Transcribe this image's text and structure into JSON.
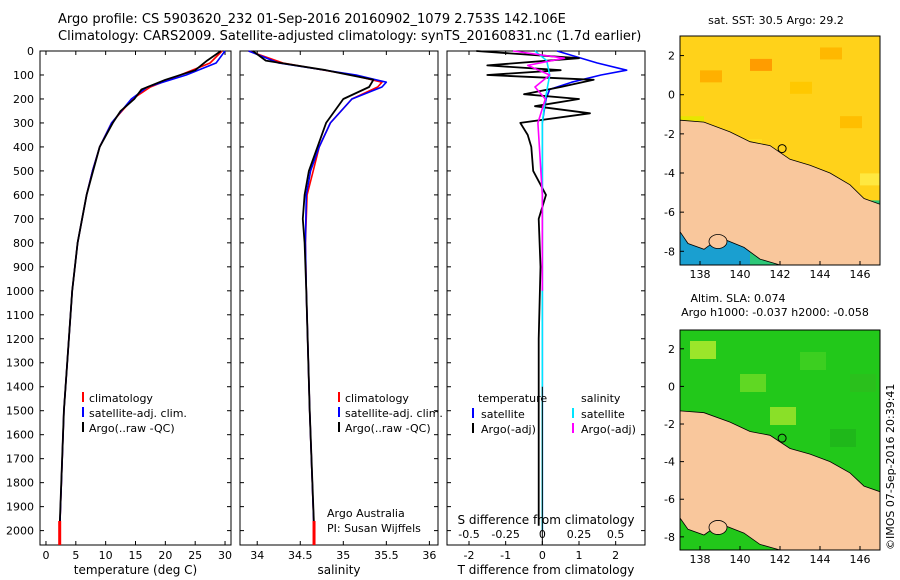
{
  "title": {
    "line1": "Argo profile: CS 5903620_232 01-Sep-2016 20160902_1079 2.753S 142.106E",
    "line2": "Climatology: CARS2009. Satellite-adjusted climatology: synTS_20160831.nc (1.7d earlier)"
  },
  "colors": {
    "climatology": "#ff0000",
    "satellite": "#0000ff",
    "argo": "#000000",
    "sal_satellite": "#00e5ff",
    "sal_argo": "#ff00ff",
    "land": "#f9c79c",
    "sst_warm": "#ffd21a",
    "sla_green": "#22c81a"
  },
  "chart_data": [
    {
      "type": "line",
      "title": "",
      "xlabel": "temperature (deg C)",
      "ylabel": "",
      "xlim": [
        -1,
        31
      ],
      "ylim": [
        2060,
        0
      ],
      "xticks": [
        "0",
        "5",
        "10",
        "15",
        "20",
        "25",
        "30"
      ],
      "yticks": [
        "0",
        "100",
        "200",
        "300",
        "400",
        "500",
        "600",
        "700",
        "800",
        "900",
        "1000",
        "1100",
        "1200",
        "1300",
        "1400",
        "1500",
        "1600",
        "1700",
        "1800",
        "1900",
        "2000"
      ],
      "legend": [
        "climatology",
        "satellite-adj. clim.",
        "Argo(..raw -QC)"
      ],
      "series": [
        {
          "name": "climatology",
          "depth": [
            0,
            50,
            100,
            150,
            200,
            300,
            400,
            500,
            600,
            800,
            1000,
            1500,
            2000
          ],
          "values": [
            29.5,
            27.5,
            22.5,
            17.5,
            14.5,
            11,
            9,
            7.8,
            6.8,
            5.3,
            4.4,
            3.0,
            2.3
          ]
        },
        {
          "name": "satellite-adj. clim.",
          "depth": [
            0,
            50,
            100,
            150,
            200,
            300,
            400,
            500,
            600,
            800,
            1000,
            1500,
            2000
          ],
          "values": [
            30.0,
            28.5,
            23.5,
            17,
            14.3,
            11,
            9,
            7.8,
            6.8,
            5.3,
            4.4,
            3.0,
            2.3
          ]
        },
        {
          "name": "Argo(..raw -QC)",
          "depth": [
            0,
            40,
            80,
            120,
            160,
            200,
            250,
            300,
            400,
            500,
            600,
            800,
            1000,
            1500,
            1980
          ],
          "values": [
            29.3,
            27,
            25,
            20,
            16,
            14.8,
            12.5,
            11.2,
            9,
            7.9,
            6.8,
            5.3,
            4.4,
            3.0,
            2.3
          ]
        }
      ]
    },
    {
      "type": "line",
      "title": "",
      "xlabel": "salinity",
      "ylabel": "",
      "xlim": [
        33.8,
        36.1
      ],
      "ylim": [
        2060,
        0
      ],
      "xticks": [
        "34",
        "34.5",
        "35",
        "35.5",
        "36"
      ],
      "legend": [
        "climatology",
        "satellite-adj. clim.",
        "Argo(..raw -QC)"
      ],
      "annotation": [
        "Argo Australia",
        "PI: Susan Wijffels"
      ],
      "series": [
        {
          "name": "climatology",
          "depth": [
            0,
            50,
            100,
            130,
            150,
            200,
            300,
            400,
            500,
            600,
            800,
            1000,
            1500,
            2000
          ],
          "values": [
            33.9,
            34.3,
            35.1,
            35.45,
            35.4,
            35.1,
            34.85,
            34.72,
            34.65,
            34.58,
            34.56,
            34.57,
            34.61,
            34.66
          ]
        },
        {
          "name": "satellite-adj. clim.",
          "depth": [
            0,
            50,
            100,
            130,
            150,
            200,
            300,
            400,
            500,
            600,
            800,
            1000,
            1500,
            2000
          ],
          "values": [
            33.9,
            34.25,
            35.15,
            35.5,
            35.45,
            35.1,
            34.85,
            34.72,
            34.62,
            34.57,
            34.56,
            34.57,
            34.61,
            34.66
          ]
        },
        {
          "name": "Argo(..raw -QC)",
          "depth": [
            0,
            40,
            80,
            120,
            150,
            200,
            300,
            400,
            500,
            600,
            700,
            800,
            1000,
            1500,
            1980
          ],
          "values": [
            33.95,
            34.1,
            34.8,
            35.35,
            35.3,
            35.0,
            34.8,
            34.7,
            34.6,
            34.55,
            34.53,
            34.55,
            34.57,
            34.61,
            34.66
          ]
        }
      ]
    },
    {
      "type": "line",
      "title": "",
      "xlabel": "T difference from climatology",
      "xlabel_top": "S difference from climatology",
      "xlim": [
        -2.6,
        2.8
      ],
      "ylim": [
        2060,
        0
      ],
      "xticks": [
        "-2",
        "-1",
        "0",
        "1",
        "2"
      ],
      "xticks_top": [
        "-0.5",
        "-0.25",
        "0",
        "0.25",
        "0.5"
      ],
      "legend_t": {
        "header": "temperature",
        "items": [
          "satellite",
          "Argo(-adj)"
        ]
      },
      "legend_s": {
        "header": "salinity",
        "items": [
          "satellite",
          "Argo(-adj)"
        ]
      },
      "series": [
        {
          "name": "T satellite",
          "depth": [
            0,
            50,
            80,
            100,
            130,
            160,
            200,
            300,
            500,
            800,
            1200,
            1600,
            2000
          ],
          "values": [
            0.4,
            1.5,
            2.3,
            1.6,
            0.8,
            0.2,
            0.1,
            0.0,
            0.0,
            0.0,
            0.0,
            0.0,
            0.0
          ]
        },
        {
          "name": "T Argo(-adj)",
          "depth": [
            0,
            30,
            60,
            80,
            100,
            120,
            150,
            180,
            200,
            230,
            260,
            300,
            350,
            400,
            500,
            600,
            700,
            900,
            1200,
            1600,
            1980
          ],
          "values": [
            -1.8,
            1.0,
            -1.5,
            0.5,
            -1.5,
            1.4,
            0.5,
            -0.5,
            1.0,
            -0.2,
            1.3,
            -0.6,
            -0.4,
            -0.3,
            -0.25,
            0.1,
            -0.1,
            -0.05,
            -0.1,
            -0.1,
            -0.1
          ]
        },
        {
          "name": "S satellite",
          "depth": [
            0,
            40,
            100,
            200,
            300,
            500,
            800,
            1200,
            2000
          ],
          "values": [
            -0.05,
            0.03,
            0.05,
            0.02,
            0.0,
            0.0,
            0.0,
            0.0,
            0.0
          ]
        },
        {
          "name": "S Argo(-adj)",
          "depth": [
            0,
            30,
            60,
            100,
            150,
            200,
            300,
            400,
            600,
            800,
            1000
          ],
          "values": [
            -0.2,
            0.15,
            -0.1,
            0.05,
            -0.05,
            0.02,
            -0.03,
            -0.02,
            0.0,
            0.0,
            0.0
          ]
        }
      ]
    },
    {
      "type": "heatmap",
      "title": "sat. SST: 30.5  Argo: 29.2",
      "xlim": [
        137,
        147
      ],
      "ylim": [
        -8.7,
        3.0
      ],
      "xticks": [
        "138",
        "140",
        "142",
        "144",
        "146"
      ],
      "yticks": [
        "2",
        "0",
        "-2",
        "-4",
        "-6",
        "-8"
      ],
      "argo_position": {
        "lon": 142.106,
        "lat": -2.753
      }
    },
    {
      "type": "heatmap",
      "title": "Altim. SLA: 0.074",
      "subtitle": "Argo h1000: -0.037  h2000: -0.058",
      "xlim": [
        137,
        147
      ],
      "ylim": [
        -8.7,
        3.0
      ],
      "xticks": [
        "138",
        "140",
        "142",
        "144",
        "146"
      ],
      "yticks": [
        "2",
        "0",
        "-2",
        "-4",
        "-6",
        "-8"
      ],
      "argo_position": {
        "lon": 142.106,
        "lat": -2.753
      }
    }
  ],
  "footer": {
    "stamp": "©IMOS 07-Sep-2016 20:39:41"
  }
}
